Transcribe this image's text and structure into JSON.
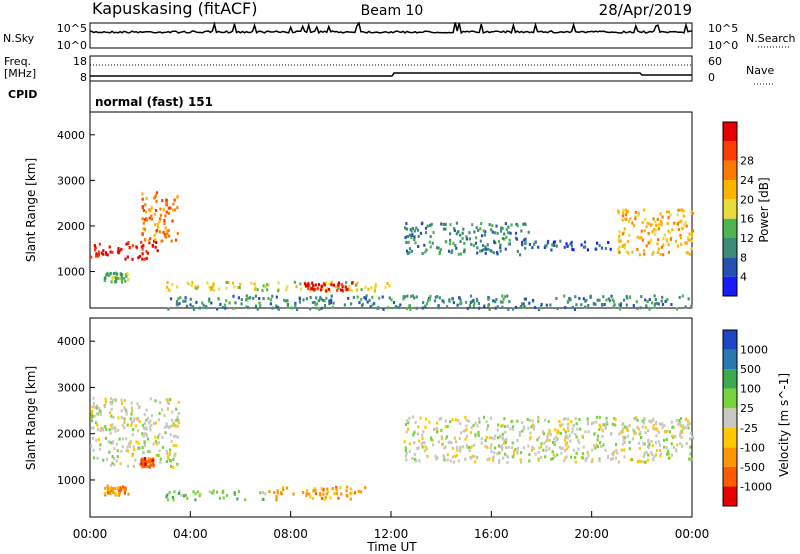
{
  "header": {
    "station": "Kapuskasing (fitACF)",
    "beam": "Beam 10",
    "date": "28/Apr/2019"
  },
  "noise_panel": {
    "left_label": "N.Sky",
    "right_label": "N.Search",
    "left_ticks": [
      "10^5",
      "10^0"
    ],
    "right_ticks": [
      "10^5",
      "10^0"
    ]
  },
  "freq_panel": {
    "label_line1": "Freq.",
    "label_line2": "[MHz]",
    "left_ticks": [
      "18",
      "8"
    ],
    "right_ticks": [
      "60",
      "0"
    ],
    "right_label": "Nave",
    "cpid_label": "CPID",
    "cpid_value": "normal (fast) 151"
  },
  "colors": {
    "power": [
      "#1a1aff",
      "#2850b4",
      "#3c8c78",
      "#50b450",
      "#e6dc3c",
      "#ffb400",
      "#ff7800",
      "#ff3c00",
      "#e60000"
    ],
    "velocity": [
      "#1e46c8",
      "#2878b4",
      "#3caa50",
      "#78d23c",
      "#c8c8c0",
      "#ffc800",
      "#ff9600",
      "#ff5a00",
      "#e60000"
    ]
  },
  "chart_data": [
    {
      "type": "heatmap",
      "name": "power",
      "ylabel": "Slant Range [km]",
      "yticks": [
        "1000",
        "2000",
        "3000",
        "4000"
      ],
      "ylim": [
        200,
        4500
      ],
      "colorbar_label": "Power [dB]",
      "colorbar_ticks": [
        "4",
        "8",
        "12",
        "16",
        "20",
        "24",
        "28"
      ],
      "features": [
        {
          "t0": 0.0,
          "t1": 2.7,
          "r0": 1300,
          "r1": 1700,
          "level": 8
        },
        {
          "t0": 2.0,
          "t1": 3.5,
          "r0": 1700,
          "r1": 2800,
          "level": 6
        },
        {
          "t0": 0.5,
          "t1": 1.5,
          "r0": 800,
          "r1": 1000,
          "level": 3
        },
        {
          "t0": 3.0,
          "t1": 12.0,
          "r0": 600,
          "r1": 800,
          "level": 4
        },
        {
          "t0": 8.5,
          "t1": 10.5,
          "r0": 600,
          "r1": 800,
          "level": 8
        },
        {
          "t0": 3.0,
          "t1": 24.0,
          "r0": 200,
          "r1": 500,
          "level": 2
        },
        {
          "t0": 12.5,
          "t1": 17.5,
          "r0": 1400,
          "r1": 2100,
          "level": 2
        },
        {
          "t0": 17.5,
          "t1": 21.0,
          "r0": 1500,
          "r1": 1700,
          "level": 1
        },
        {
          "t0": 21.0,
          "t1": 24.0,
          "r0": 1400,
          "r1": 2400,
          "level": 5
        }
      ]
    },
    {
      "type": "heatmap",
      "name": "velocity",
      "ylabel": "Slant Range [km]",
      "yticks": [
        "1000",
        "2000",
        "3000",
        "4000"
      ],
      "ylim": [
        200,
        4500
      ],
      "colorbar_label": "Velocity [m s^-1]",
      "colorbar_ticks": [
        "1000",
        "500",
        "100",
        "25",
        "-25",
        "-100",
        "-500",
        "-1000"
      ],
      "xlabel": "Time UT",
      "xticks": [
        "00:00",
        "04:00",
        "08:00",
        "12:00",
        "16:00",
        "20:00",
        "00:00"
      ],
      "xlim": [
        0,
        24
      ],
      "features": [
        {
          "t0": 0.0,
          "t1": 3.5,
          "r0": 1300,
          "r1": 2800,
          "level": 4
        },
        {
          "t0": 0.5,
          "t1": 1.5,
          "r0": 700,
          "r1": 900,
          "level": 6
        },
        {
          "t0": 2.0,
          "t1": 2.5,
          "r0": 1300,
          "r1": 1500,
          "level": 7
        },
        {
          "t0": 3.0,
          "t1": 7.0,
          "r0": 600,
          "r1": 800,
          "level": 3
        },
        {
          "t0": 7.0,
          "t1": 11.0,
          "r0": 600,
          "r1": 900,
          "level": 6
        },
        {
          "t0": 12.5,
          "t1": 24.0,
          "r0": 1400,
          "r1": 2400,
          "level": 4
        }
      ]
    }
  ]
}
